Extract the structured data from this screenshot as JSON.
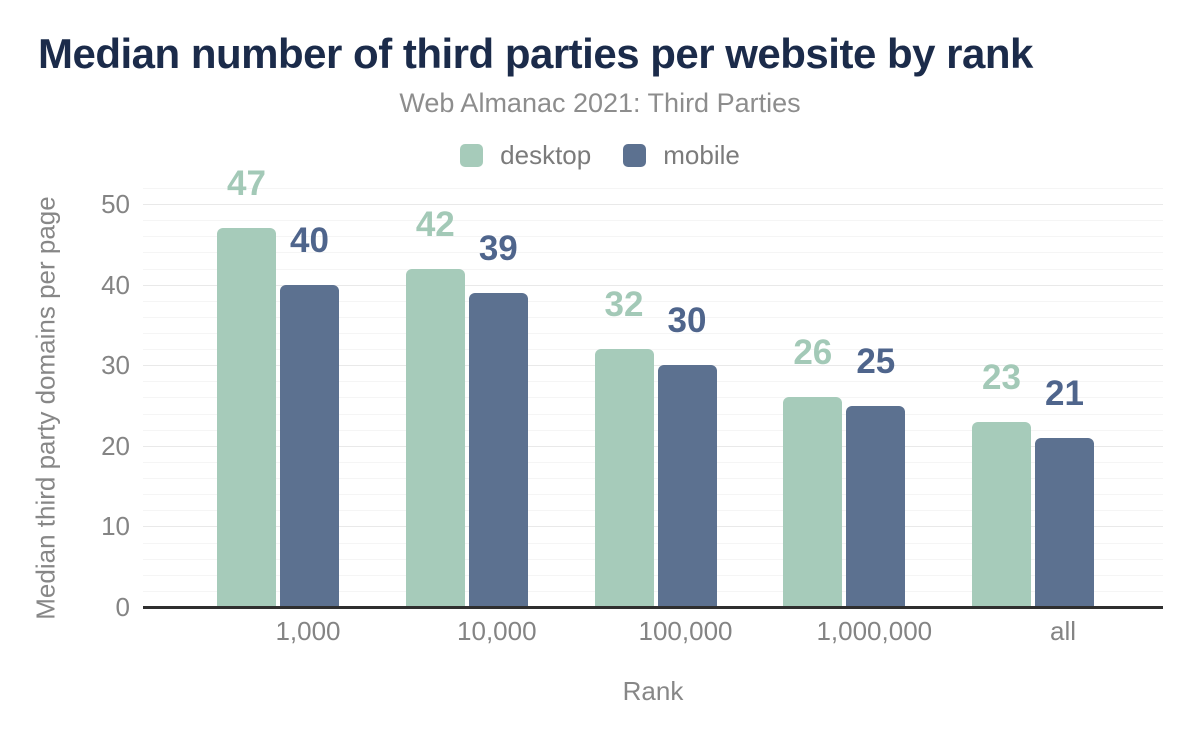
{
  "chart_data": {
    "type": "bar",
    "title": "Median number of third parties per website by rank",
    "subtitle": "Web Almanac 2021: Third Parties",
    "categories": [
      "1,000",
      "10,000",
      "100,000",
      "1,000,000",
      "all"
    ],
    "series": [
      {
        "name": "desktop",
        "values": [
          47,
          42,
          32,
          26,
          23
        ],
        "color": "#a6cbba",
        "label_color": "#a3c9b7"
      },
      {
        "name": "mobile",
        "values": [
          40,
          39,
          30,
          25,
          21
        ],
        "color": "#5c7190",
        "label_color": "#4f658c"
      }
    ],
    "xlabel": "Rank",
    "ylabel": "Median third party domains per page",
    "ylim": [
      0,
      50
    ],
    "y_ticks": [
      0,
      10,
      20,
      30,
      40,
      50
    ],
    "minor_grid_step": 2,
    "grid": "on",
    "legend_position": "top",
    "data_labels": true
  },
  "colors": {
    "title": "#1b2b4a",
    "subtitle": "#8d8d8d",
    "tick_label": "#848484",
    "axis_title": "#878787",
    "legend_label": "#7b7b7b",
    "axis_line": "#2f2f2f",
    "major_grid": "#e9e9e9",
    "minor_grid": "#f5f5f5",
    "background": "#ffffff"
  }
}
